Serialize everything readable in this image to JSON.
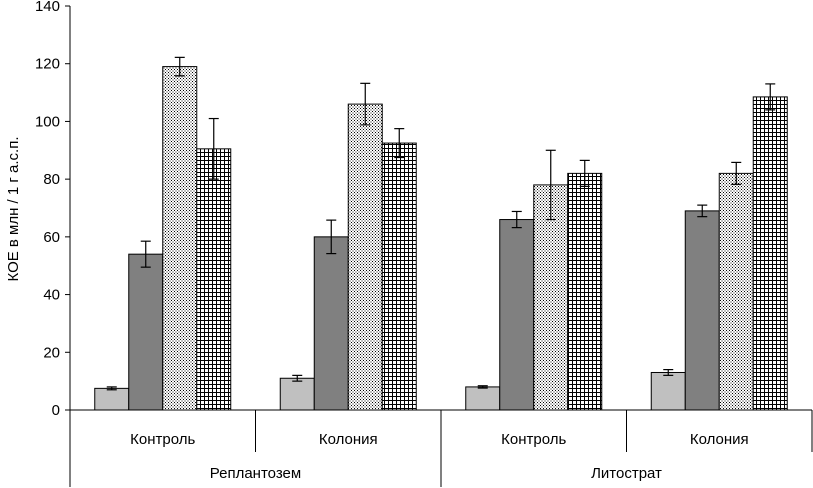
{
  "chart_data": {
    "type": "bar",
    "ylabel": "КОЕ в млн / 1 г а.с.п.",
    "ylim": [
      0,
      140
    ],
    "yticks": [
      0,
      20,
      40,
      60,
      80,
      100,
      120,
      140
    ],
    "grid": false,
    "legend": "none",
    "categories": [
      "Контроль",
      "Колония",
      "Контроль",
      "Колония"
    ],
    "groups": [
      {
        "label": "Реплантозем",
        "categories": [
          "Контроль",
          "Колония"
        ]
      },
      {
        "label": "Литострат",
        "categories": [
          "Контроль",
          "Колония"
        ]
      }
    ],
    "series": [
      {
        "pattern": "solid",
        "color": "#c0c0c0",
        "values": [
          7.5,
          11,
          8,
          13
        ],
        "errors": [
          0.5,
          1,
          0.4,
          1
        ]
      },
      {
        "pattern": "solid",
        "color": "#808080",
        "values": [
          54,
          60,
          66,
          69
        ],
        "errors": [
          4.5,
          5.8,
          2.8,
          2
        ]
      },
      {
        "pattern": "dots",
        "color": "#000000",
        "values": [
          119,
          106,
          78,
          82
        ],
        "errors": [
          3.2,
          7.2,
          12,
          3.8
        ]
      },
      {
        "pattern": "grid",
        "color": "#000000",
        "values": [
          90.5,
          92.5,
          82,
          108.5
        ],
        "errors": [
          10.5,
          5,
          4.5,
          4.5
        ]
      }
    ]
  }
}
